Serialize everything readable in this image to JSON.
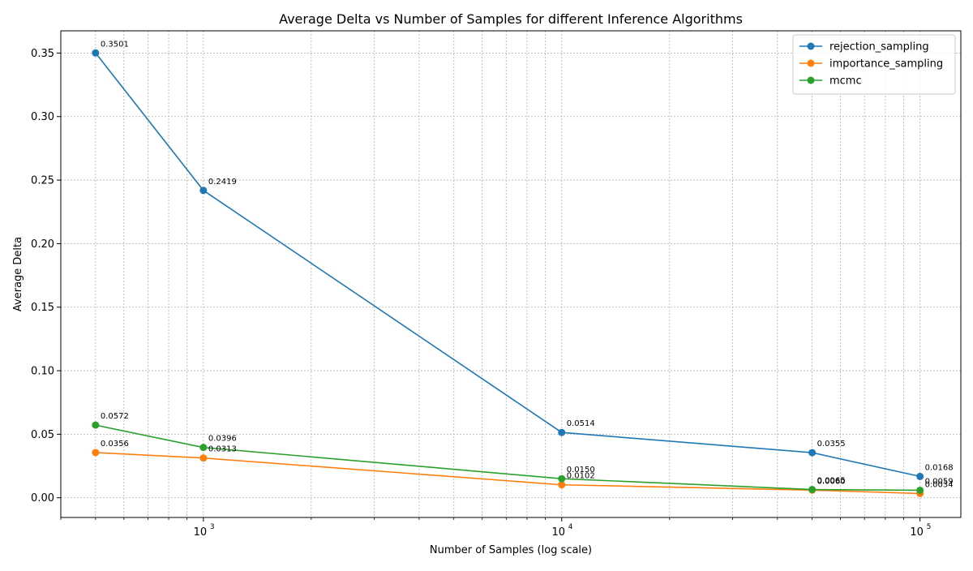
{
  "chart_data": {
    "type": "line",
    "title": "Average Delta vs Number of Samples for different Inference Algorithms",
    "xlabel": "Number of Samples (log scale)",
    "ylabel": "Average Delta",
    "xscale": "log",
    "xlim": [
      400,
      130000
    ],
    "ylim": [
      -0.0155,
      0.3675
    ],
    "grid": true,
    "legend_position": "top-right",
    "x": [
      500,
      1000,
      10000,
      50000,
      100000
    ],
    "y_ticks": [
      0.0,
      0.05,
      0.1,
      0.15,
      0.2,
      0.25,
      0.3,
      0.35
    ],
    "y_tick_labels": [
      "0.00",
      "0.05",
      "0.10",
      "0.15",
      "0.20",
      "0.25",
      "0.30",
      "0.35"
    ],
    "x_ticks": [
      1000,
      10000,
      100000
    ],
    "x_tick_labels": [
      {
        "base": "10",
        "exp": "3"
      },
      {
        "base": "10",
        "exp": "4"
      },
      {
        "base": "10",
        "exp": "5"
      }
    ],
    "series": [
      {
        "name": "rejection_sampling",
        "color": "#1f77b4",
        "values": [
          0.3501,
          0.2419,
          0.0514,
          0.0355,
          0.0168
        ],
        "labels": [
          "0.3501",
          "0.2419",
          "0.0514",
          "0.0355",
          "0.0168"
        ]
      },
      {
        "name": "importance_sampling",
        "color": "#ff7f0e",
        "values": [
          0.0356,
          0.0313,
          0.0102,
          0.006,
          0.0034
        ],
        "labels": [
          "0.0356",
          "0.0313",
          "0.0102",
          "0.0060",
          "0.0034"
        ]
      },
      {
        "name": "mcmc",
        "color": "#2ca02c",
        "values": [
          0.0572,
          0.0396,
          0.015,
          0.0065,
          0.0059
        ],
        "labels": [
          "0.0572",
          "0.0396",
          "0.0150",
          "0.0065",
          "0.0059"
        ]
      }
    ]
  }
}
